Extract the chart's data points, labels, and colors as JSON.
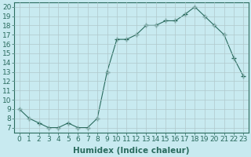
{
  "x": [
    0,
    1,
    2,
    3,
    4,
    5,
    6,
    7,
    8,
    9,
    10,
    11,
    12,
    13,
    14,
    15,
    16,
    17,
    18,
    19,
    20,
    21,
    22,
    23
  ],
  "y": [
    9.0,
    8.0,
    7.5,
    7.0,
    7.0,
    7.5,
    7.0,
    7.0,
    8.0,
    13.0,
    16.5,
    16.5,
    17.0,
    18.0,
    18.0,
    18.5,
    18.5,
    19.2,
    20.0,
    19.0,
    18.0,
    17.0,
    14.5,
    12.5
  ],
  "line_color": "#2a6b5e",
  "marker": "+",
  "marker_size": 4,
  "bg_color": "#c8eaf0",
  "grid_color": "#b0c8cc",
  "xlabel": "Humidex (Indice chaleur)",
  "ylabel": "",
  "title": "",
  "xlim": [
    -0.5,
    23.5
  ],
  "ylim": [
    6.5,
    20.5
  ],
  "yticks": [
    7,
    8,
    9,
    10,
    11,
    12,
    13,
    14,
    15,
    16,
    17,
    18,
    19,
    20
  ],
  "xticks": [
    0,
    1,
    2,
    3,
    4,
    5,
    6,
    7,
    8,
    9,
    10,
    11,
    12,
    13,
    14,
    15,
    16,
    17,
    18,
    19,
    20,
    21,
    22,
    23
  ],
  "font_size": 6.5,
  "xlabel_fontsize": 7.5
}
